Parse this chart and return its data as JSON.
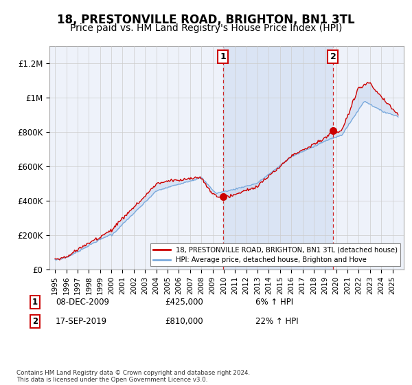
{
  "title": "18, PRESTONVILLE ROAD, BRIGHTON, BN1 3TL",
  "subtitle": "Price paid vs. HM Land Registry's House Price Index (HPI)",
  "title_fontsize": 12,
  "subtitle_fontsize": 10,
  "background_color": "#ffffff",
  "plot_bg_color": "#eef2fa",
  "grid_color": "#cccccc",
  "hpi_line_color": "#7aaadd",
  "price_line_color": "#cc0000",
  "marker_color": "#cc0000",
  "dashed_line_color": "#cc0000",
  "ylim": [
    0,
    1300000
  ],
  "yticks": [
    0,
    200000,
    400000,
    600000,
    800000,
    1000000,
    1200000
  ],
  "ytick_labels": [
    "£0",
    "£200K",
    "£400K",
    "£600K",
    "£800K",
    "£1M",
    "£1.2M"
  ],
  "sale1_x": 2009.93,
  "sale1_y": 425000,
  "sale1_label": "1",
  "sale1_date_str": "08-DEC-2009",
  "sale1_hpi_pct": "6%",
  "sale2_x": 2019.71,
  "sale2_y": 810000,
  "sale2_label": "2",
  "sale2_date_str": "17-SEP-2019",
  "sale2_hpi_pct": "22%",
  "legend_label1": "18, PRESTONVILLE ROAD, BRIGHTON, BN1 3TL (detached house)",
  "legend_label2": "HPI: Average price, detached house, Brighton and Hove",
  "footer": "Contains HM Land Registry data © Crown copyright and database right 2024.\nThis data is licensed under the Open Government Licence v3.0.",
  "xmin": 1994.5,
  "xmax": 2026.0,
  "shade_between_sales": true,
  "shade_color": "#c8d8f0",
  "shade_alpha": 0.5
}
